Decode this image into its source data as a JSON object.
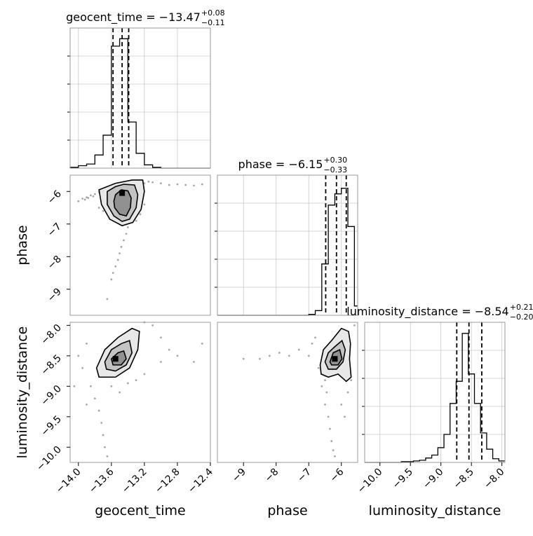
{
  "chart_data": [
    {
      "type": "histogram",
      "param": "geocent_time",
      "title": "geocent_time = −13.47",
      "title_sup": "+0.08",
      "title_sub": "−0.11",
      "xlim": [
        -14.1,
        -12.4
      ],
      "bins": [
        -14.1,
        -14.0,
        -13.9,
        -13.8,
        -13.7,
        -13.6,
        -13.5,
        -13.4,
        -13.3,
        -13.2,
        -13.1,
        -13.0,
        -12.9,
        -12.8,
        -12.7,
        -12.6,
        -12.5,
        -12.4
      ],
      "counts": [
        1,
        3,
        5,
        16,
        40,
        148,
        157,
        56,
        18,
        4,
        1,
        0,
        0,
        0,
        0,
        0,
        0
      ],
      "ymax": 170,
      "quantiles": [
        -13.58,
        -13.47,
        -13.39
      ],
      "grid": true
    },
    {
      "type": "histogram",
      "param": "phase",
      "title": "phase = −6.15",
      "title_sup": "+0.30",
      "title_sub": "−0.33",
      "xlim": [
        -9.8,
        -5.5
      ],
      "bins": [
        -9.8,
        -9.6,
        -9.4,
        -9.2,
        -9.0,
        -8.8,
        -8.6,
        -8.4,
        -8.2,
        -8.0,
        -7.8,
        -7.6,
        -7.4,
        -7.2,
        -7.0,
        -6.8,
        -6.6,
        -6.4,
        -6.2,
        -6.0,
        -5.8,
        -5.6,
        -5.5
      ],
      "counts": [
        0,
        0,
        0,
        0,
        0,
        0,
        0,
        0,
        0,
        0,
        0,
        0,
        0,
        0,
        1,
        5,
        55,
        118,
        130,
        136,
        95,
        10
      ],
      "ymax": 150,
      "quantiles": [
        -6.48,
        -6.15,
        -5.85
      ],
      "grid": true
    },
    {
      "type": "histogram",
      "param": "luminosity_distance",
      "title": "luminosity_distance = −8.54",
      "title_sup": "+0.21",
      "title_sub": "−0.20",
      "xlim": [
        -10.25,
        -7.95
      ],
      "bins": [
        -10.25,
        -10.15,
        -10.05,
        -9.95,
        -9.85,
        -9.75,
        -9.65,
        -9.55,
        -9.45,
        -9.35,
        -9.25,
        -9.15,
        -9.05,
        -8.95,
        -8.85,
        -8.75,
        -8.65,
        -8.55,
        -8.45,
        -8.35,
        -8.25,
        -8.15,
        -8.05,
        -7.95
      ],
      "counts": [
        0,
        0,
        0,
        0,
        0,
        0,
        1,
        1,
        2,
        3,
        6,
        10,
        20,
        38,
        80,
        110,
        175,
        120,
        80,
        40,
        18,
        5,
        2
      ],
      "ymax": 190,
      "quantiles": [
        -8.74,
        -8.54,
        -8.33
      ],
      "grid": true
    },
    {
      "type": "contour2d",
      "x": "geocent_time",
      "y": "phase",
      "xlim": [
        -14.1,
        -12.4
      ],
      "ylim": [
        -9.8,
        -5.5
      ],
      "peak": [
        -13.47,
        -6.05
      ],
      "contour_levels": [
        [
          [
            -13.55,
            -6.1
          ],
          [
            -13.48,
            -5.95
          ],
          [
            -13.4,
            -5.98
          ],
          [
            -13.36,
            -6.2
          ],
          [
            -13.37,
            -6.5
          ],
          [
            -13.42,
            -6.75
          ],
          [
            -13.5,
            -6.7
          ],
          [
            -13.56,
            -6.5
          ],
          [
            -13.57,
            -6.3
          ]
        ],
        [
          [
            -13.65,
            -6.0
          ],
          [
            -13.55,
            -5.85
          ],
          [
            -13.45,
            -5.78
          ],
          [
            -13.32,
            -5.8
          ],
          [
            -13.28,
            -6.1
          ],
          [
            -13.3,
            -6.5
          ],
          [
            -13.38,
            -6.85
          ],
          [
            -13.47,
            -6.92
          ],
          [
            -13.57,
            -6.75
          ],
          [
            -13.65,
            -6.4
          ]
        ],
        [
          [
            -13.75,
            -5.95
          ],
          [
            -13.55,
            -5.75
          ],
          [
            -13.35,
            -5.65
          ],
          [
            -13.22,
            -5.65
          ],
          [
            -13.2,
            -6.0
          ],
          [
            -13.24,
            -6.55
          ],
          [
            -13.34,
            -6.95
          ],
          [
            -13.47,
            -7.05
          ],
          [
            -13.62,
            -6.85
          ],
          [
            -13.72,
            -6.4
          ]
        ]
      ],
      "scatter": [
        [
          -14.0,
          -6.3
        ],
        [
          -13.95,
          -6.22
        ],
        [
          -13.9,
          -6.18
        ],
        [
          -13.85,
          -6.12
        ],
        [
          -13.8,
          -6.08
        ],
        [
          -13.75,
          -6.02
        ],
        [
          -13.7,
          -6.0
        ],
        [
          -13.88,
          -6.2
        ],
        [
          -13.82,
          -6.15
        ],
        [
          -13.92,
          -6.25
        ],
        [
          -13.2,
          -5.75
        ],
        [
          -13.15,
          -5.7
        ],
        [
          -13.1,
          -5.72
        ],
        [
          -13.0,
          -5.75
        ],
        [
          -12.9,
          -5.8
        ],
        [
          -12.8,
          -5.78
        ],
        [
          -12.7,
          -5.8
        ],
        [
          -12.6,
          -5.82
        ],
        [
          -12.5,
          -5.78
        ],
        [
          -13.4,
          -7.1
        ],
        [
          -13.42,
          -7.3
        ],
        [
          -13.45,
          -7.5
        ],
        [
          -13.48,
          -7.7
        ],
        [
          -13.5,
          -7.9
        ],
        [
          -13.52,
          -8.1
        ],
        [
          -13.55,
          -8.3
        ],
        [
          -13.58,
          -8.5
        ],
        [
          -13.6,
          -8.7
        ],
        [
          -13.65,
          -9.3
        ],
        [
          -13.7,
          -6.6
        ],
        [
          -13.75,
          -6.5
        ],
        [
          -13.3,
          -6.9
        ],
        [
          -13.25,
          -6.7
        ],
        [
          -13.2,
          -6.4
        ]
      ]
    },
    {
      "type": "contour2d",
      "x": "geocent_time",
      "y": "luminosity_distance",
      "xlim": [
        -14.1,
        -12.4
      ],
      "ylim": [
        -10.25,
        -7.95
      ],
      "peak": [
        -13.55,
        -8.55
      ],
      "contour_levels": [
        [
          [
            -13.6,
            -8.55
          ],
          [
            -13.52,
            -8.45
          ],
          [
            -13.45,
            -8.42
          ],
          [
            -13.42,
            -8.55
          ],
          [
            -13.48,
            -8.65
          ],
          [
            -13.58,
            -8.65
          ]
        ],
        [
          [
            -13.68,
            -8.6
          ],
          [
            -13.6,
            -8.4
          ],
          [
            -13.48,
            -8.3
          ],
          [
            -13.38,
            -8.25
          ],
          [
            -13.35,
            -8.45
          ],
          [
            -13.42,
            -8.65
          ],
          [
            -13.55,
            -8.75
          ],
          [
            -13.66,
            -8.72
          ]
        ],
        [
          [
            -13.78,
            -8.7
          ],
          [
            -13.68,
            -8.4
          ],
          [
            -13.52,
            -8.2
          ],
          [
            -13.35,
            -8.05
          ],
          [
            -13.26,
            -8.1
          ],
          [
            -13.28,
            -8.4
          ],
          [
            -13.38,
            -8.7
          ],
          [
            -13.55,
            -8.85
          ],
          [
            -13.75,
            -8.85
          ]
        ]
      ],
      "scatter": [
        [
          -13.9,
          -8.3
        ],
        [
          -14.0,
          -8.5
        ],
        [
          -13.95,
          -8.7
        ],
        [
          -13.85,
          -9.0
        ],
        [
          -13.8,
          -9.2
        ],
        [
          -13.75,
          -9.4
        ],
        [
          -13.72,
          -9.6
        ],
        [
          -13.7,
          -9.8
        ],
        [
          -13.68,
          -10.0
        ],
        [
          -13.65,
          -10.15
        ],
        [
          -13.3,
          -8.9
        ],
        [
          -13.2,
          -8.8
        ],
        [
          -13.0,
          -8.6
        ],
        [
          -12.8,
          -8.5
        ],
        [
          -12.6,
          -8.6
        ],
        [
          -12.5,
          -8.3
        ],
        [
          -14.05,
          -9.0
        ],
        [
          -13.9,
          -9.3
        ],
        [
          -13.6,
          -9.0
        ],
        [
          -13.5,
          -9.1
        ],
        [
          -13.4,
          -8.95
        ],
        [
          -13.2,
          -7.95
        ],
        [
          -13.1,
          -8.0
        ],
        [
          -13.0,
          -8.2
        ],
        [
          -12.9,
          -8.4
        ]
      ]
    },
    {
      "type": "contour2d",
      "x": "phase",
      "y": "luminosity_distance",
      "xlim": [
        -9.8,
        -5.5
      ],
      "ylim": [
        -10.25,
        -7.95
      ],
      "peak": [
        -6.2,
        -8.55
      ],
      "contour_levels": [
        [
          [
            -6.35,
            -8.6
          ],
          [
            -6.25,
            -8.45
          ],
          [
            -6.05,
            -8.4
          ],
          [
            -5.98,
            -8.55
          ],
          [
            -6.1,
            -8.65
          ],
          [
            -6.3,
            -8.65
          ]
        ],
        [
          [
            -6.5,
            -8.6
          ],
          [
            -6.4,
            -8.45
          ],
          [
            -6.2,
            -8.35
          ],
          [
            -5.98,
            -8.25
          ],
          [
            -5.88,
            -8.4
          ],
          [
            -5.95,
            -8.6
          ],
          [
            -6.15,
            -8.72
          ],
          [
            -6.4,
            -8.72
          ]
        ],
        [
          [
            -6.65,
            -8.65
          ],
          [
            -6.55,
            -8.4
          ],
          [
            -6.3,
            -8.25
          ],
          [
            -6.0,
            -8.05
          ],
          [
            -5.78,
            -8.1
          ],
          [
            -5.72,
            -8.3
          ],
          [
            -5.75,
            -8.55
          ],
          [
            -5.7,
            -8.85
          ],
          [
            -5.85,
            -8.92
          ],
          [
            -6.1,
            -8.8
          ],
          [
            -6.4,
            -8.85
          ],
          [
            -6.62,
            -8.8
          ]
        ]
      ],
      "scatter": [
        [
          -9.0,
          -8.55
        ],
        [
          -8.5,
          -8.55
        ],
        [
          -8.2,
          -8.5
        ],
        [
          -7.9,
          -8.45
        ],
        [
          -7.6,
          -8.5
        ],
        [
          -7.3,
          -8.4
        ],
        [
          -7.0,
          -8.5
        ],
        [
          -6.9,
          -8.3
        ],
        [
          -6.8,
          -8.2
        ],
        [
          -6.7,
          -8.7
        ],
        [
          -6.6,
          -9.0
        ],
        [
          -6.5,
          -9.3
        ],
        [
          -6.4,
          -9.5
        ],
        [
          -6.35,
          -9.7
        ],
        [
          -6.3,
          -9.9
        ],
        [
          -6.25,
          -10.05
        ],
        [
          -6.2,
          -10.15
        ],
        [
          -6.0,
          -9.3
        ],
        [
          -5.9,
          -9.5
        ],
        [
          -5.8,
          -9.1
        ],
        [
          -5.6,
          -8.0
        ],
        [
          -5.7,
          -8.9
        ],
        [
          -6.45,
          -9.1
        ],
        [
          -6.5,
          -8.9
        ]
      ]
    }
  ],
  "axis_labels": {
    "geocent_time": "geocent_time",
    "phase": "phase",
    "luminosity_distance": "luminosity_distance"
  },
  "tick_labels": {
    "geocent_time": [
      "−14.0",
      "−13.6",
      "−13.2",
      "−12.8",
      "−12.4"
    ],
    "phase": [
      "−9",
      "−8",
      "−7",
      "−6"
    ],
    "phase_y": [
      "−6",
      "−7",
      "−8",
      "−9"
    ],
    "luminosity_distance": [
      "−10.0",
      "−9.5",
      "−9.0",
      "−8.5",
      "−8.0"
    ],
    "luminosity_distance_y": [
      "−8.0",
      "−8.5",
      "−9.0",
      "−9.5",
      "−10.0"
    ]
  },
  "tick_values": {
    "geocent_time": [
      -14.0,
      -13.6,
      -13.2,
      -12.8,
      -12.4
    ],
    "phase": [
      -9,
      -8,
      -7,
      -6
    ],
    "phase_y": [
      -6,
      -7,
      -8,
      -9
    ],
    "luminosity_distance": [
      -10.0,
      -9.5,
      -9.0,
      -8.5,
      -8.0
    ],
    "luminosity_distance_y": [
      -8.0,
      -8.5,
      -9.0,
      -9.5,
      -10.0
    ]
  }
}
